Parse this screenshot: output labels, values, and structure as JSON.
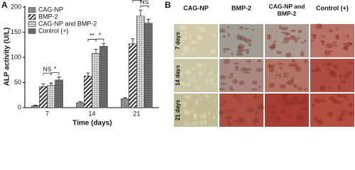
{
  "chart_data": {
    "type": "bar",
    "panel_label": "A",
    "ylabel": "ALP activity (U/L)",
    "xlabel": "Time (days)",
    "categories": [
      "7",
      "14",
      "21"
    ],
    "ylim": [
      0,
      200
    ],
    "yticks": [
      0,
      50,
      100,
      150,
      200
    ],
    "series": [
      {
        "name": "CAG-NP",
        "color": "#8c8c8c",
        "pattern": "solid",
        "values": [
          4,
          10,
          18
        ],
        "errors": [
          1,
          2,
          2
        ]
      },
      {
        "name": "BMP-2",
        "color": "#333333",
        "pattern": "hatch",
        "values": [
          42,
          63,
          127
        ],
        "errors": [
          5,
          6,
          10
        ]
      },
      {
        "name": "CAG-NP and BMP-2",
        "color": "#9a9a9a",
        "pattern": "dots",
        "values": [
          44,
          108,
          182
        ],
        "errors": [
          5,
          8,
          12
        ]
      },
      {
        "name": "Control (+)",
        "color": "#444444",
        "pattern": "dense-dots",
        "values": [
          55,
          122,
          168
        ],
        "errors": [
          6,
          6,
          8
        ]
      }
    ],
    "annotations": [
      "NS",
      "*",
      "**",
      "*",
      "**",
      "NS"
    ]
  },
  "image_panel": {
    "panel_label": "B",
    "columns": [
      "CAG-NP",
      "BMP-2",
      "CAG-NP and BMP-2",
      "Control (+)"
    ],
    "rows": [
      "7 days",
      "14 days",
      "21 days"
    ]
  }
}
